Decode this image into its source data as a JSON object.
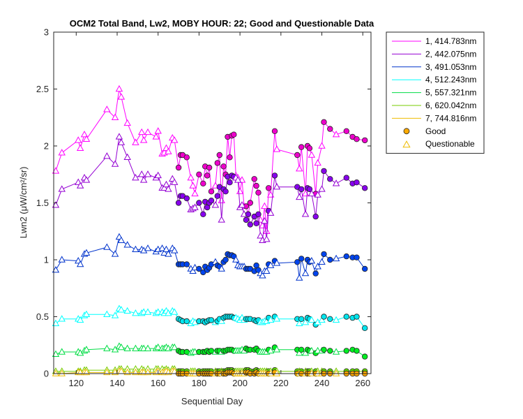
{
  "chart_data": {
    "type": "line",
    "title": "OCM2 Total Band, Lw2, MOBY HOUR: 22;  Good and Questionable Data",
    "xlabel": "Sequential Day",
    "ylabel": "Lwn2 (μW/cm²/sr)",
    "xlim": [
      109,
      264
    ],
    "ylim": [
      0,
      3
    ],
    "xticks": [
      120,
      140,
      160,
      180,
      200,
      220,
      240,
      260
    ],
    "yticks": [
      0,
      0.5,
      1,
      1.5,
      2,
      2.5,
      3
    ],
    "xtick_labels": [
      "120",
      "140",
      "160",
      "180",
      "200",
      "220",
      "240",
      "260"
    ],
    "ytick_labels": [
      "0",
      "0.5",
      "1",
      "1.5",
      "2",
      "2.5",
      "3"
    ],
    "grid": false,
    "legend_position": "outside-top-right",
    "x": [
      110,
      113,
      121,
      122,
      124,
      125,
      135,
      139,
      141,
      142,
      145,
      149,
      152,
      153,
      155,
      159,
      160,
      162,
      163,
      164,
      165,
      167,
      168,
      170,
      171,
      172,
      174,
      176,
      177,
      178,
      180,
      182,
      183,
      184,
      185,
      186,
      188,
      189,
      190,
      191,
      192,
      193,
      194,
      195,
      196,
      197,
      198,
      199,
      200,
      201,
      202,
      203,
      204,
      205,
      207,
      208,
      209,
      210,
      211,
      212,
      213,
      214,
      215,
      217,
      218,
      228,
      229,
      230,
      232,
      233,
      234,
      235,
      237,
      238,
      240,
      241,
      244,
      247,
      252,
      255,
      257,
      261
    ],
    "flags": [
      "Q",
      "Q",
      "Q",
      "Q",
      "Q",
      "Q",
      "Q",
      "Q",
      "Q",
      "Q",
      "Q",
      "Q",
      "Q",
      "Q",
      "Q",
      "Q",
      "Q",
      "Q",
      "Q",
      "Q",
      "Q",
      "Q",
      "Q",
      "G",
      "G",
      "G",
      "G",
      "Q",
      "Q",
      "Q",
      "G",
      "G",
      "G",
      "G",
      "G",
      "G",
      "Q",
      "G",
      "G",
      "Q",
      "G",
      "G",
      "G",
      "G",
      "G",
      "G",
      "Q",
      "Q",
      "Q",
      "Q",
      "Q",
      "G",
      "G",
      "G",
      "G",
      "G",
      "G",
      "Q",
      "Q",
      "Q",
      "Q",
      "G",
      "Q",
      "G",
      "Q",
      "G",
      "Q",
      "G",
      "Q",
      "G",
      "G",
      "Q",
      "G",
      "Q",
      "Q",
      "G",
      "G",
      "Q",
      "G",
      "G",
      "G",
      "G"
    ],
    "series": [
      {
        "name": "1, 414.783nm",
        "color": "#ff00ff",
        "good_color": "#ee00cc",
        "values": [
          1.78,
          1.94,
          2.05,
          1.98,
          2.1,
          2.06,
          2.32,
          2.25,
          2.5,
          2.43,
          2.2,
          2.03,
          2.12,
          2.05,
          2.12,
          2.08,
          2.13,
          1.93,
          1.94,
          1.98,
          1.95,
          2.07,
          2.05,
          1.81,
          1.92,
          1.92,
          1.9,
          1.72,
          1.65,
          1.58,
          1.75,
          1.67,
          1.82,
          1.74,
          1.81,
          1.6,
          1.65,
          1.85,
          1.92,
          1.52,
          1.82,
          1.75,
          2.08,
          1.9,
          2.09,
          2.1,
          1.74,
          1.72,
          1.6,
          1.7,
          1.47,
          1.47,
          1.4,
          1.5,
          1.71,
          1.65,
          1.59,
          1.35,
          1.3,
          1.47,
          1.25,
          1.63,
          1.57,
          2.13,
          1.97,
          1.92,
          1.8,
          1.99,
          1.58,
          2.0,
          1.98,
          1.92,
          1.58,
          1.85,
          2.0,
          2.21,
          2.15,
          2.1,
          2.13,
          2.08,
          2.06,
          2.05
        ]
      },
      {
        "name": "2, 442.075nm",
        "color": "#9400d3",
        "good_color": "#8800ee",
        "values": [
          1.48,
          1.62,
          1.68,
          1.65,
          1.72,
          1.7,
          1.91,
          1.84,
          2.08,
          2.03,
          1.9,
          1.72,
          1.75,
          1.7,
          1.75,
          1.72,
          1.74,
          1.63,
          1.63,
          1.66,
          1.62,
          1.71,
          1.68,
          1.5,
          1.56,
          1.56,
          1.54,
          1.44,
          1.45,
          1.46,
          1.5,
          1.4,
          1.51,
          1.46,
          1.5,
          1.52,
          1.48,
          1.56,
          1.64,
          1.35,
          1.62,
          1.6,
          1.73,
          1.68,
          1.74,
          1.73,
          1.72,
          1.7,
          1.46,
          1.48,
          1.4,
          1.35,
          1.4,
          1.31,
          1.38,
          1.32,
          1.4,
          1.21,
          1.17,
          1.34,
          1.18,
          1.43,
          1.41,
          1.74,
          1.64,
          1.64,
          1.55,
          1.62,
          1.4,
          1.63,
          1.62,
          1.58,
          1.38,
          1.57,
          1.62,
          1.78,
          1.71,
          1.67,
          1.72,
          1.67,
          1.68,
          1.63
        ]
      },
      {
        "name": "3, 491.053nm",
        "color": "#0033cc",
        "good_color": "#0044ee",
        "values": [
          0.91,
          1.0,
          0.99,
          0.96,
          1.05,
          1.06,
          1.11,
          1.05,
          1.2,
          1.17,
          1.13,
          1.09,
          1.09,
          1.08,
          1.1,
          1.07,
          1.09,
          1.1,
          1.06,
          1.09,
          1.05,
          1.1,
          1.08,
          0.96,
          0.96,
          0.96,
          0.96,
          0.92,
          0.9,
          0.93,
          0.92,
          0.89,
          0.94,
          0.91,
          0.93,
          0.96,
          0.98,
          0.95,
          0.94,
          0.92,
          0.98,
          1.0,
          1.05,
          1.04,
          1.04,
          1.03,
          1.0,
          0.95,
          0.94,
          0.94,
          0.94,
          0.92,
          0.92,
          0.92,
          0.9,
          0.95,
          0.91,
          0.88,
          0.86,
          0.9,
          0.9,
          0.96,
          0.95,
          0.99,
          0.97,
          0.98,
          0.84,
          1.01,
          0.88,
          1.0,
          0.98,
          0.99,
          0.88,
          0.94,
          0.98,
          1.05,
          1.0,
          1.01,
          1.03,
          1.02,
          1.02,
          0.92
        ]
      },
      {
        "name": "4, 512.243nm",
        "color": "#00ffff",
        "good_color": "#00e5ee",
        "values": [
          0.44,
          0.48,
          0.48,
          0.47,
          0.51,
          0.52,
          0.52,
          0.51,
          0.57,
          0.56,
          0.55,
          0.53,
          0.53,
          0.54,
          0.54,
          0.53,
          0.54,
          0.54,
          0.53,
          0.55,
          0.53,
          0.55,
          0.54,
          0.48,
          0.47,
          0.46,
          0.46,
          0.44,
          0.46,
          0.45,
          0.46,
          0.46,
          0.45,
          0.46,
          0.47,
          0.47,
          0.45,
          0.46,
          0.48,
          0.46,
          0.49,
          0.5,
          0.5,
          0.5,
          0.5,
          0.49,
          0.49,
          0.48,
          0.47,
          0.49,
          0.47,
          0.48,
          0.48,
          0.48,
          0.47,
          0.46,
          0.47,
          0.45,
          0.45,
          0.46,
          0.46,
          0.49,
          0.47,
          0.5,
          0.48,
          0.48,
          0.44,
          0.48,
          0.45,
          0.49,
          0.48,
          0.47,
          0.43,
          0.45,
          0.47,
          0.5,
          0.48,
          0.47,
          0.5,
          0.49,
          0.5,
          0.4
        ]
      },
      {
        "name": "5, 557.321nm",
        "color": "#00dd44",
        "good_color": "#00ee22",
        "values": [
          0.17,
          0.19,
          0.19,
          0.18,
          0.2,
          0.21,
          0.22,
          0.21,
          0.24,
          0.23,
          0.22,
          0.22,
          0.22,
          0.22,
          0.22,
          0.22,
          0.23,
          0.22,
          0.22,
          0.23,
          0.22,
          0.23,
          0.23,
          0.2,
          0.19,
          0.19,
          0.19,
          0.18,
          0.19,
          0.19,
          0.19,
          0.19,
          0.19,
          0.2,
          0.19,
          0.2,
          0.19,
          0.2,
          0.2,
          0.19,
          0.2,
          0.2,
          0.21,
          0.21,
          0.21,
          0.2,
          0.2,
          0.2,
          0.2,
          0.21,
          0.2,
          0.22,
          0.21,
          0.21,
          0.21,
          0.22,
          0.2,
          0.19,
          0.19,
          0.19,
          0.19,
          0.21,
          0.2,
          0.23,
          0.21,
          0.21,
          0.18,
          0.21,
          0.18,
          0.21,
          0.2,
          0.2,
          0.18,
          0.2,
          0.2,
          0.21,
          0.2,
          0.19,
          0.2,
          0.21,
          0.2,
          0.15
        ]
      },
      {
        "name": "6, 620.042nm",
        "color": "#77cc00",
        "good_color": "#66dd00",
        "values": [
          0.02,
          0.02,
          0.02,
          0.02,
          0.03,
          0.03,
          0.03,
          0.03,
          0.04,
          0.04,
          0.04,
          0.04,
          0.04,
          0.03,
          0.04,
          0.04,
          0.04,
          0.04,
          0.03,
          0.04,
          0.03,
          0.04,
          0.04,
          0.02,
          0.02,
          0.02,
          0.02,
          0.02,
          0.02,
          0.02,
          0.02,
          0.02,
          0.02,
          0.02,
          0.02,
          0.02,
          0.02,
          0.02,
          0.02,
          0.02,
          0.02,
          0.02,
          0.03,
          0.03,
          0.03,
          0.02,
          0.02,
          0.02,
          0.02,
          0.02,
          0.02,
          0.03,
          0.03,
          0.02,
          0.02,
          0.03,
          0.02,
          0.02,
          0.02,
          0.02,
          0.02,
          0.02,
          0.02,
          0.03,
          0.02,
          0.02,
          0.02,
          0.02,
          0.02,
          0.02,
          0.02,
          0.02,
          0.02,
          0.02,
          0.02,
          0.02,
          0.02,
          0.02,
          0.02,
          0.02,
          0.02,
          0.02
        ]
      },
      {
        "name": "7, 744.816nm",
        "color": "#eebb00",
        "good_color": "#ffaa00",
        "values": [
          0.0,
          0.0,
          0.01,
          0.01,
          0.01,
          0.01,
          0.01,
          0.01,
          0.02,
          0.02,
          0.01,
          0.01,
          0.01,
          0.01,
          0.01,
          0.01,
          0.02,
          0.01,
          0.01,
          0.02,
          0.01,
          0.02,
          0.02,
          0.0,
          0.0,
          0.0,
          0.0,
          0.0,
          0.0,
          0.0,
          0.0,
          0.0,
          0.0,
          0.0,
          0.0,
          0.0,
          0.0,
          0.0,
          0.0,
          0.0,
          0.0,
          0.0,
          0.01,
          0.01,
          0.01,
          0.0,
          0.0,
          0.0,
          0.0,
          0.0,
          0.0,
          0.01,
          0.01,
          0.0,
          0.0,
          0.01,
          0.0,
          0.0,
          0.0,
          0.0,
          0.0,
          0.0,
          0.0,
          0.01,
          0.0,
          0.0,
          0.0,
          0.0,
          0.0,
          0.0,
          0.0,
          0.0,
          0.0,
          0.0,
          0.0,
          0.0,
          0.0,
          0.0,
          0.0,
          0.0,
          0.0,
          0.0
        ]
      }
    ],
    "legend": {
      "markers": [
        {
          "label": "Good",
          "shape": "circle",
          "color": "#ffaa00"
        },
        {
          "label": "Questionable",
          "shape": "triangle",
          "color": "#eebb00"
        }
      ]
    }
  }
}
